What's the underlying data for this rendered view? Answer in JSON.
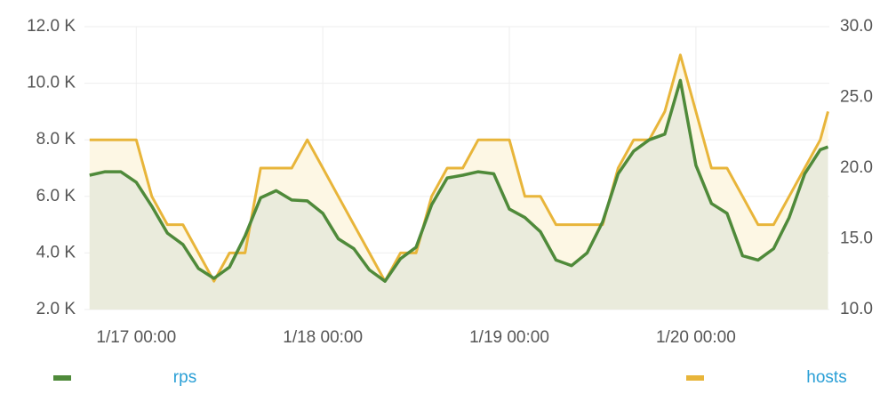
{
  "chart_data": {
    "type": "line",
    "x": [
      "1/16 18:00",
      "1/16 20:00",
      "1/16 22:00",
      "1/17 00:00",
      "1/17 02:00",
      "1/17 04:00",
      "1/17 06:00",
      "1/17 08:00",
      "1/17 10:00",
      "1/17 12:00",
      "1/17 14:00",
      "1/17 16:00",
      "1/17 18:00",
      "1/17 20:00",
      "1/17 22:00",
      "1/18 00:00",
      "1/18 02:00",
      "1/18 04:00",
      "1/18 06:00",
      "1/18 08:00",
      "1/18 10:00",
      "1/18 12:00",
      "1/18 14:00",
      "1/18 16:00",
      "1/18 18:00",
      "1/18 20:00",
      "1/18 22:00",
      "1/19 00:00",
      "1/19 02:00",
      "1/19 04:00",
      "1/19 06:00",
      "1/19 08:00",
      "1/19 10:00",
      "1/19 12:00",
      "1/19 14:00",
      "1/19 16:00",
      "1/19 18:00",
      "1/19 20:00",
      "1/19 22:00",
      "1/20 00:00",
      "1/20 02:00",
      "1/20 04:00",
      "1/20 06:00",
      "1/20 08:00",
      "1/20 10:00",
      "1/20 12:00",
      "1/20 14:00",
      "1/20 16:00",
      "1/20 17:00"
    ],
    "series": [
      {
        "name": "hosts",
        "color": "#e8b53a",
        "fill": "#fdf7e4",
        "axis": "y2",
        "values": [
          22,
          22,
          22,
          22,
          18,
          16,
          16,
          14,
          12,
          14,
          14,
          20,
          20,
          20,
          22,
          20,
          18,
          16,
          14,
          12,
          14,
          14,
          18,
          20,
          20,
          22,
          22,
          22,
          18,
          18,
          16,
          16,
          16,
          16,
          20,
          22,
          22,
          24,
          28,
          24,
          20,
          20,
          18,
          16,
          16,
          18,
          20,
          22,
          24
        ]
      },
      {
        "name": "rps",
        "color": "#4f8a3a",
        "fill": "#eaebdc",
        "axis": "y",
        "values": [
          6750,
          6870,
          6870,
          6500,
          5650,
          4700,
          4300,
          3450,
          3100,
          3500,
          4600,
          5950,
          6200,
          5870,
          5840,
          5400,
          4500,
          4150,
          3400,
          3000,
          3800,
          4200,
          5700,
          6650,
          6750,
          6870,
          6800,
          5550,
          5250,
          4750,
          3750,
          3550,
          4000,
          5100,
          6800,
          7600,
          8000,
          8200,
          10100,
          7100,
          5750,
          5400,
          3900,
          3750,
          4150,
          5250,
          6800,
          7650,
          7750
        ]
      }
    ],
    "xlim": [
      "1/16 17:20",
      "1/20 17:10"
    ],
    "xticks": [
      "1/17 00:00",
      "1/18 00:00",
      "1/19 00:00",
      "1/20 00:00"
    ],
    "ylim": [
      2000,
      12000
    ],
    "yticks": [
      {
        "value": 2000,
        "label": "2.0 K"
      },
      {
        "value": 4000,
        "label": "4.0 K"
      },
      {
        "value": 6000,
        "label": "6.0 K"
      },
      {
        "value": 8000,
        "label": "8.0 K"
      },
      {
        "value": 10000,
        "label": "10.0 K"
      },
      {
        "value": 12000,
        "label": "12.0 K"
      }
    ],
    "y2lim": [
      10,
      30
    ],
    "y2ticks": [
      {
        "value": 10,
        "label": "10.0"
      },
      {
        "value": 15,
        "label": "15.0"
      },
      {
        "value": 20,
        "label": "20.0"
      },
      {
        "value": 25,
        "label": "25.0"
      },
      {
        "value": 30,
        "label": "30.0"
      }
    ],
    "grid": true
  }
}
